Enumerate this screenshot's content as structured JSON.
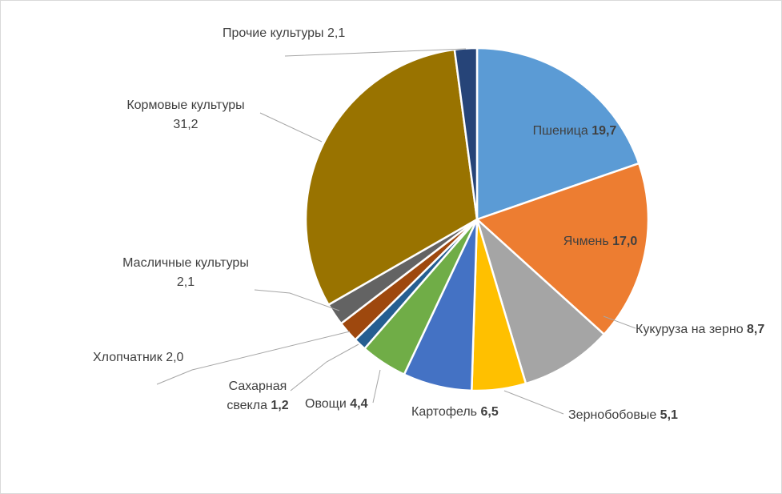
{
  "chart_data": {
    "type": "pie",
    "title": "",
    "slices": [
      {
        "name": "Пшеница",
        "value": 19.7,
        "display": "19,7",
        "color": "#5b9bd5",
        "bold": true,
        "inside": true
      },
      {
        "name": "Ячмень",
        "value": 17.0,
        "display": "17,0",
        "color": "#ed7d31",
        "bold": true,
        "inside": true
      },
      {
        "name": "Кукуруза на зерно",
        "value": 8.7,
        "display": "8,7",
        "color": "#a5a5a5",
        "bold": true,
        "inside": false
      },
      {
        "name": "Зернобобовые",
        "value": 5.1,
        "display": "5,1",
        "color": "#ffc000",
        "bold": true,
        "inside": false
      },
      {
        "name": "Картофель",
        "value": 6.5,
        "display": "6,5",
        "color": "#4472c4",
        "bold": true,
        "inside": false
      },
      {
        "name": "Овощи",
        "value": 4.4,
        "display": "4,4",
        "color": "#70ad47",
        "bold": true,
        "inside": false
      },
      {
        "name": "Сахарная свекла",
        "value": 1.2,
        "display": "1,2",
        "color": "#255e91",
        "bold": true,
        "inside": false
      },
      {
        "name": "Хлопчатник",
        "value": 2.0,
        "display": "2,0",
        "color": "#9e480e",
        "bold": false,
        "inside": false
      },
      {
        "name": "Масличные культуры",
        "value": 2.1,
        "display": "2,1",
        "color": "#636363",
        "bold": false,
        "inside": false
      },
      {
        "name": "Кормовые культуры",
        "value": 31.2,
        "display": "31,2",
        "color": "#997300",
        "bold": false,
        "inside": false
      },
      {
        "name": "Прочие культуры",
        "value": 2.1,
        "display": "2,1",
        "color": "#264478",
        "bold": false,
        "inside": false
      }
    ],
    "label_lines": {
      "Сахарная свекла": [
        "Сахарная",
        "свекла"
      ],
      "Масличные культуры": [
        "Масличные культуры",
        ""
      ],
      "Кормовые культуры": [
        "Кормовые культуры",
        ""
      ]
    },
    "legend": "none",
    "grid": false
  }
}
